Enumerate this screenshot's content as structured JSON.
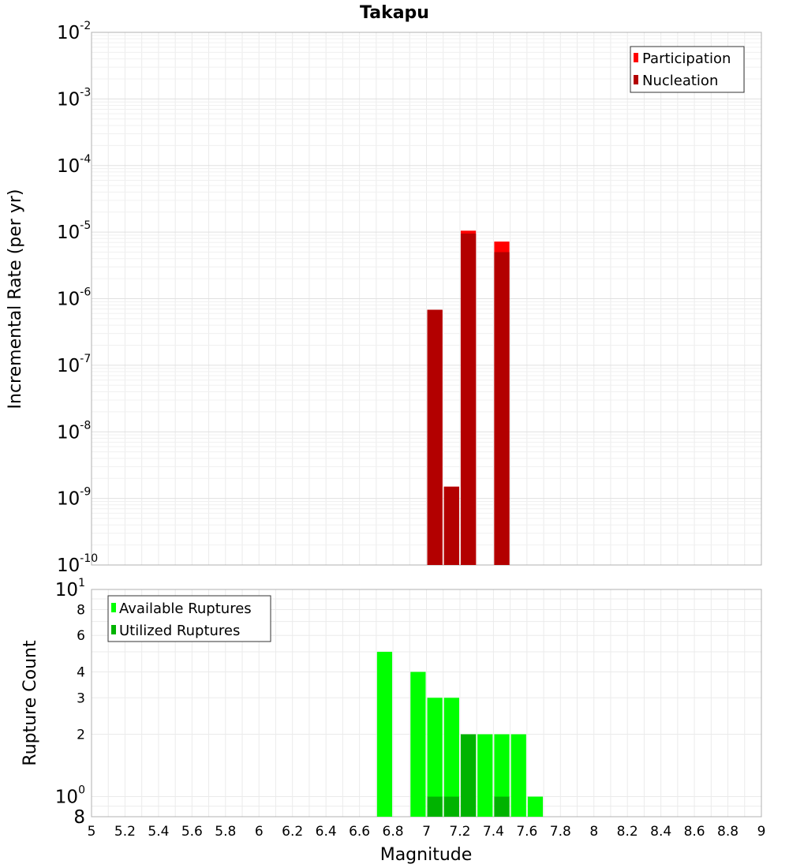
{
  "chart_data": [
    {
      "type": "bar",
      "title": "Takapu",
      "xlabel": "",
      "ylabel": "Incremental Rate (per yr)",
      "yscale": "log",
      "ylim": [
        1e-10,
        0.01
      ],
      "xlim": [
        5,
        9
      ],
      "bin_width": 0.1,
      "y_ticks": [
        "10^-10",
        "10^-9",
        "10^-8",
        "10^-7",
        "10^-6",
        "10^-5",
        "10^-4",
        "10^-3",
        "10^-2"
      ],
      "legend": {
        "position": "top-right"
      },
      "series": [
        {
          "name": "Participation",
          "color": "#ff0000",
          "x": [
            7.05,
            7.15,
            7.25,
            7.45
          ],
          "values": [
            6.8e-07,
            1.5e-09,
            1.05e-05,
            7.2e-06
          ]
        },
        {
          "name": "Nucleation",
          "color": "#b30000",
          "x": [
            7.05,
            7.15,
            7.25,
            7.45
          ],
          "values": [
            6.8e-07,
            1.5e-09,
            9.5e-06,
            5e-06
          ]
        }
      ]
    },
    {
      "type": "bar",
      "title": "",
      "xlabel": "Magnitude",
      "ylabel": "Rupture Count",
      "yscale": "log",
      "ylim": [
        0.8,
        10
      ],
      "xlim": [
        5,
        9
      ],
      "bin_width": 0.1,
      "x_ticks": [
        "5",
        "5.2",
        "5.4",
        "5.6",
        "5.8",
        "6",
        "6.2",
        "6.4",
        "6.6",
        "6.8",
        "7",
        "7.2",
        "7.4",
        "7.6",
        "7.8",
        "8",
        "8.2",
        "8.4",
        "8.6",
        "8.8",
        "9"
      ],
      "legend": {
        "position": "top-left"
      },
      "series": [
        {
          "name": "Available Ruptures",
          "color": "#00ff00",
          "x": [
            6.75,
            6.95,
            7.05,
            7.15,
            7.25,
            7.35,
            7.45,
            7.55,
            7.65
          ],
          "values": [
            5,
            4,
            3,
            3,
            2,
            2,
            2,
            2,
            1
          ]
        },
        {
          "name": "Utilized Ruptures",
          "color": "#00b300",
          "x": [
            7.05,
            7.15,
            7.25,
            7.45
          ],
          "values": [
            1,
            1,
            2,
            1
          ]
        }
      ]
    }
  ]
}
